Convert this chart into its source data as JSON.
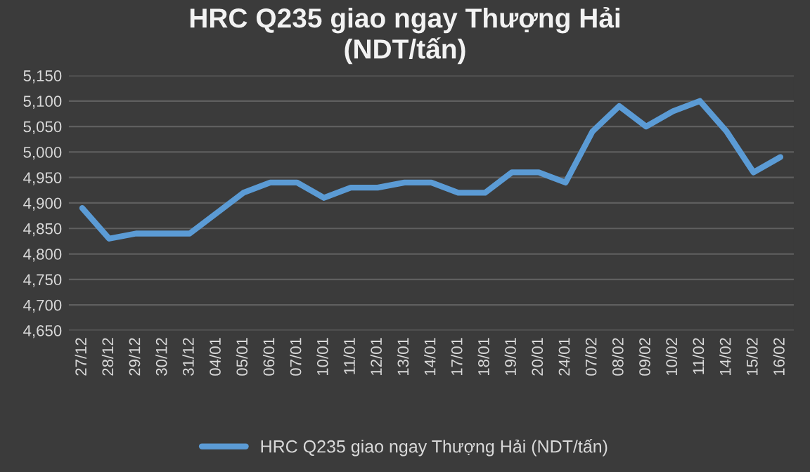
{
  "chart_data": {
    "type": "line",
    "title": "HRC Q235 giao ngay Thượng Hải\n(NDT/tấn)",
    "categories": [
      "27/12",
      "28/12",
      "29/12",
      "30/12",
      "31/12",
      "04/01",
      "05/01",
      "06/01",
      "07/01",
      "10/01",
      "11/01",
      "12/01",
      "13/01",
      "14/01",
      "17/01",
      "18/01",
      "19/01",
      "20/01",
      "24/01",
      "07/02",
      "08/02",
      "09/02",
      "10/02",
      "11/02",
      "14/02",
      "15/02",
      "16/02"
    ],
    "series": [
      {
        "name": "HRC Q235 giao ngay Thượng Hải (NDT/tấn)",
        "color": "#5b9bd5",
        "values": [
          4890,
          4830,
          4840,
          4840,
          4840,
          4880,
          4920,
          4940,
          4940,
          4910,
          4930,
          4930,
          4940,
          4940,
          4920,
          4920,
          4960,
          4960,
          4940,
          5040,
          5090,
          5050,
          5080,
          5100,
          5040,
          4960,
          4990
        ]
      }
    ],
    "ylim": [
      4650,
      5150
    ],
    "yticks": [
      {
        "value": 4650,
        "label": "4,650"
      },
      {
        "value": 4700,
        "label": "4,700"
      },
      {
        "value": 4750,
        "label": "4,750"
      },
      {
        "value": 4800,
        "label": "4,800"
      },
      {
        "value": 4850,
        "label": "4,850"
      },
      {
        "value": 4900,
        "label": "4,900"
      },
      {
        "value": 4950,
        "label": "4,950"
      },
      {
        "value": 5000,
        "label": "5,000"
      },
      {
        "value": 5050,
        "label": "5,050"
      },
      {
        "value": 5100,
        "label": "5,100"
      },
      {
        "value": 5150,
        "label": "5,150"
      }
    ],
    "grid": "y",
    "legend": "bottom",
    "marker": "none",
    "line_style": "solid"
  }
}
